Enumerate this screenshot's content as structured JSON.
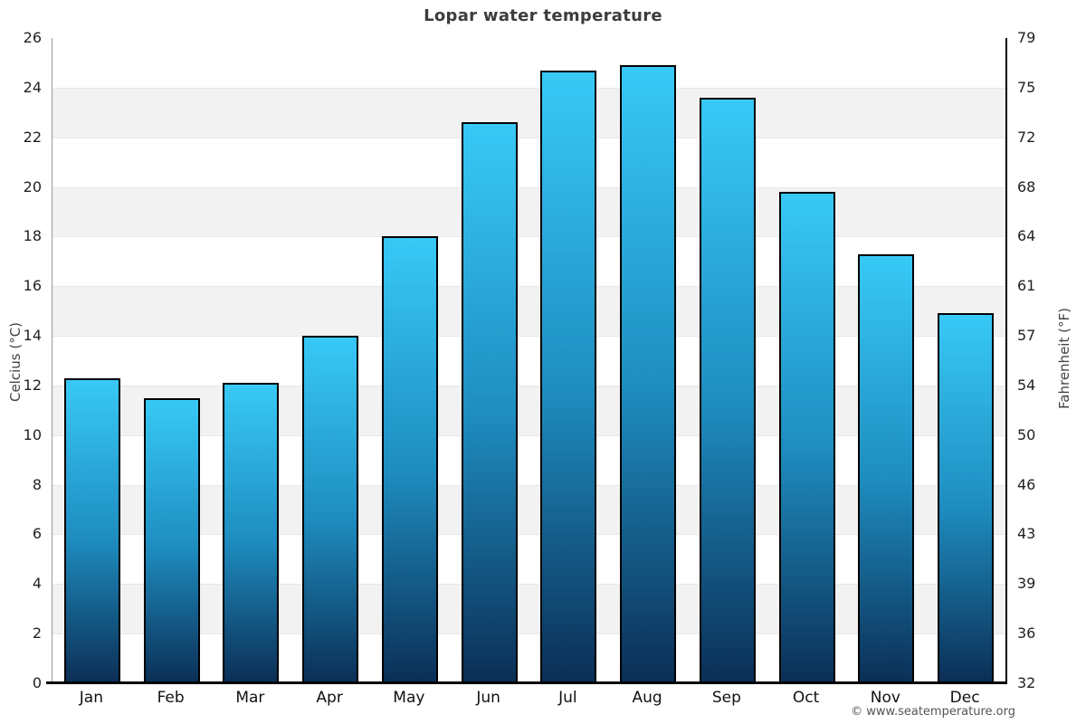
{
  "title": "Lopar water temperature",
  "chart_data": {
    "type": "bar",
    "title": "Lopar water temperature",
    "categories": [
      "Jan",
      "Feb",
      "Mar",
      "Apr",
      "May",
      "Jun",
      "Jul",
      "Aug",
      "Sep",
      "Oct",
      "Nov",
      "Dec"
    ],
    "values": [
      12.3,
      11.5,
      12.1,
      14.0,
      18.0,
      22.6,
      24.7,
      24.9,
      23.6,
      19.8,
      17.3,
      14.9
    ],
    "ylabel_left": "Celcius (°C)",
    "ylabel_right": "Fahrenheit (°F)",
    "yticks_celsius": [
      26,
      24,
      22,
      20,
      18,
      16,
      14,
      12,
      10,
      8,
      6,
      4,
      2,
      0
    ],
    "yticks_fahrenheit": [
      79,
      75,
      72,
      68,
      64,
      61,
      57,
      54,
      50,
      46,
      43,
      39,
      36,
      32
    ],
    "ylim": [
      0,
      26
    ],
    "grid": "alternating-bands",
    "legend": "none",
    "colors": {
      "bar_gradient_top": "#38c9f6",
      "bar_gradient_mid": "#1e8dc0",
      "bar_gradient_bottom": "#0b2e55",
      "bar_border": "#000000",
      "band_gray": "#f2f2f2",
      "gridline": "#e7e7e7",
      "axis_left_line": "#999999",
      "axis_black": "#000000",
      "title_text": "#3c3c3c",
      "tick_text": "#222222"
    }
  },
  "footer": {
    "copyright": "© www.seatemperature.org"
  }
}
